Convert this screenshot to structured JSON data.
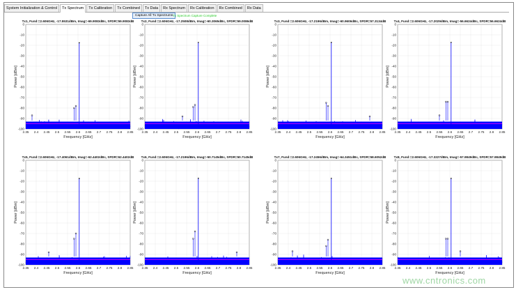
{
  "tabs": [
    {
      "label": "System Initialization & Control"
    },
    {
      "label": "Tx Spectrum",
      "active": true
    },
    {
      "label": "Tx Calibration"
    },
    {
      "label": "Tx Combined"
    },
    {
      "label": "Tx Data"
    },
    {
      "label": "Rx Spectrum"
    },
    {
      "label": "Rx Calibration"
    },
    {
      "label": "Rx Combined"
    },
    {
      "label": "Rx Data"
    }
  ],
  "capture_button": "Capture All Tx Spectrums",
  "status_text": "Tx Spectrum Capture Complete",
  "watermark": "www.cntronics.com",
  "colors": {
    "trace": "#0000ff",
    "noise_floor": "#ff00ff",
    "status": "#2ecc2e"
  },
  "chart_data": [
    {
      "type": "line",
      "title": "Tx1, Fund:=2.606GHz, -17.5531dBm, Imag=-69.9083dBc, SFDR=59.9083dB",
      "xlabel": "Frequency [GHz]",
      "ylabel": "Power [dBm]",
      "xlim": [
        2.35,
        2.85
      ],
      "ylim": [
        -100,
        0
      ],
      "xticks": [
        "2.35",
        "2.4",
        "2.45",
        "2.5",
        "2.55",
        "2.6",
        "2.65",
        "2.7",
        "2.75",
        "2.8",
        "2.85"
      ],
      "yticks": [
        "0",
        "-10",
        "-20",
        "-30",
        "-40",
        "-50",
        "-60",
        "-70",
        "-80",
        "-90",
        "-100"
      ],
      "grid": true,
      "fund": {
        "x": 2.606,
        "y": -17.55
      },
      "spurs": [
        {
          "x": 2.581,
          "y": -80
        },
        {
          "x": 2.59,
          "y": -78
        },
        {
          "x": 2.38,
          "y": -87
        }
      ]
    },
    {
      "type": "line",
      "title": "Tx2, Fund:=2.606GHz, -17.2508dBm, Imag=-60.3065dBc, SFDR=59.0086dB",
      "xlabel": "Frequency [GHz]",
      "ylabel": "Power [dBm]",
      "xlim": [
        2.35,
        2.85
      ],
      "ylim": [
        -100,
        0
      ],
      "xticks": [
        "2.35",
        "2.4",
        "2.45",
        "2.5",
        "2.55",
        "2.6",
        "2.65",
        "2.7",
        "2.75",
        "2.8",
        "2.85"
      ],
      "yticks": [
        "0",
        "-10",
        "-20",
        "-30",
        "-40",
        "-50",
        "-60",
        "-70",
        "-80",
        "-90",
        "-100"
      ],
      "grid": true,
      "fund": {
        "x": 2.606,
        "y": -17.25
      },
      "spurs": [
        {
          "x": 2.581,
          "y": -79
        },
        {
          "x": 2.59,
          "y": -77
        },
        {
          "x": 2.53,
          "y": -88
        }
      ]
    },
    {
      "type": "line",
      "title": "Tx3, Fund:=2.606GHz, -17.2196dBm, Imag=-60.9606dBc, SFDR=57.3134dB",
      "xlabel": "Frequency [GHz]",
      "ylabel": "Power [dBm]",
      "xlim": [
        2.35,
        2.85
      ],
      "ylim": [
        -100,
        0
      ],
      "xticks": [
        "2.35",
        "2.4",
        "2.45",
        "2.5",
        "2.55",
        "2.6",
        "2.65",
        "2.7",
        "2.75",
        "2.8",
        "2.85"
      ],
      "yticks": [
        "0",
        "-10",
        "-20",
        "-30",
        "-40",
        "-50",
        "-60",
        "-70",
        "-80",
        "-90",
        "-100"
      ],
      "grid": true,
      "fund": {
        "x": 2.606,
        "y": -17.22
      },
      "spurs": [
        {
          "x": 2.581,
          "y": -75
        },
        {
          "x": 2.59,
          "y": -78
        },
        {
          "x": 2.79,
          "y": -88
        }
      ]
    },
    {
      "type": "line",
      "title": "Tx4, Fund:=2.606GHz, -17.2029dBm, Imag=-56.6624dBc, SFDR=56.6624dB",
      "xlabel": "Frequency [GHz]",
      "ylabel": "Power [dBm]",
      "xlim": [
        2.35,
        2.85
      ],
      "ylim": [
        -100,
        0
      ],
      "xticks": [
        "2.35",
        "2.4",
        "2.45",
        "2.5",
        "2.55",
        "2.6",
        "2.65",
        "2.7",
        "2.75",
        "2.8",
        "2.85"
      ],
      "yticks": [
        "0",
        "-10",
        "-20",
        "-30",
        "-40",
        "-50",
        "-60",
        "-70",
        "-80",
        "-90",
        "-100"
      ],
      "grid": true,
      "fund": {
        "x": 2.606,
        "y": -17.2
      },
      "spurs": [
        {
          "x": 2.581,
          "y": -74
        },
        {
          "x": 2.59,
          "y": -74
        },
        {
          "x": 2.55,
          "y": -87
        }
      ]
    },
    {
      "type": "line",
      "title": "Tx5, Fund:=2.606GHz, -17.4061dBm, Imag=-62.4402dBc, SFDR=62.4402dB",
      "xlabel": "Frequency [GHz]",
      "ylabel": "Power [dBm]",
      "xlim": [
        2.35,
        2.85
      ],
      "ylim": [
        -100,
        0
      ],
      "xticks": [
        "2.35",
        "2.4",
        "2.45",
        "2.5",
        "2.55",
        "2.6",
        "2.65",
        "2.7",
        "2.75",
        "2.8",
        "2.85"
      ],
      "yticks": [
        "0",
        "-10",
        "-20",
        "-30",
        "-40",
        "-50",
        "-60",
        "-70",
        "-80",
        "-90",
        "-100"
      ],
      "grid": true,
      "fund": {
        "x": 2.606,
        "y": -17.4
      },
      "spurs": [
        {
          "x": 2.581,
          "y": -75
        },
        {
          "x": 2.59,
          "y": -70
        },
        {
          "x": 2.46,
          "y": -88
        }
      ]
    },
    {
      "type": "line",
      "title": "Tx6, Fund:=2.606GHz, -17.2196dBm, Imag=-50.7145dBc, SFDR=50.7145dB",
      "xlabel": "Frequency [GHz]",
      "ylabel": "Power [dBm]",
      "xlim": [
        2.35,
        2.85
      ],
      "ylim": [
        -100,
        0
      ],
      "xticks": [
        "2.35",
        "2.4",
        "2.45",
        "2.5",
        "2.55",
        "2.6",
        "2.65",
        "2.7",
        "2.75",
        "2.8",
        "2.85"
      ],
      "yticks": [
        "0",
        "-10",
        "-20",
        "-30",
        "-40",
        "-50",
        "-60",
        "-70",
        "-80",
        "-90",
        "-100"
      ],
      "grid": true,
      "fund": {
        "x": 2.606,
        "y": -17.22
      },
      "spurs": [
        {
          "x": 2.581,
          "y": -75
        },
        {
          "x": 2.59,
          "y": -68
        },
        {
          "x": 2.79,
          "y": -88
        }
      ]
    },
    {
      "type": "line",
      "title": "Tx7, Fund:=2.606GHz, -17.2456dBm, Imag=-64.3451dBc, SFDR=58.6052dB",
      "xlabel": "Frequency [GHz]",
      "ylabel": "Power [dBm]",
      "xlim": [
        2.35,
        2.85
      ],
      "ylim": [
        -100,
        0
      ],
      "xticks": [
        "2.35",
        "2.4",
        "2.45",
        "2.5",
        "2.55",
        "2.6",
        "2.65",
        "2.7",
        "2.75",
        "2.8",
        "2.85"
      ],
      "yticks": [
        "0",
        "-10",
        "-20",
        "-30",
        "-40",
        "-50",
        "-60",
        "-70",
        "-80",
        "-90",
        "-100"
      ],
      "grid": true,
      "fund": {
        "x": 2.606,
        "y": -17.25
      },
      "spurs": [
        {
          "x": 2.581,
          "y": -82
        },
        {
          "x": 2.59,
          "y": -76
        },
        {
          "x": 2.42,
          "y": -87
        }
      ]
    },
    {
      "type": "line",
      "title": "Tx8, Fund:=2.606GHz, -17.3227dBm, Imag=-57.9849dBc, SFDR=57.9849dB",
      "xlabel": "Frequency [GHz]",
      "ylabel": "Power [dBm]",
      "xlim": [
        2.35,
        2.85
      ],
      "ylim": [
        -100,
        0
      ],
      "xticks": [
        "2.35",
        "2.4",
        "2.45",
        "2.5",
        "2.55",
        "2.6",
        "2.65",
        "2.7",
        "2.75",
        "2.8",
        "2.85"
      ],
      "yticks": [
        "0",
        "-10",
        "-20",
        "-30",
        "-40",
        "-50",
        "-60",
        "-70",
        "-80",
        "-90",
        "-100"
      ],
      "grid": true,
      "fund": {
        "x": 2.606,
        "y": -17.32
      },
      "spurs": [
        {
          "x": 2.581,
          "y": -75
        },
        {
          "x": 2.59,
          "y": -75
        },
        {
          "x": 2.65,
          "y": -87
        }
      ]
    }
  ]
}
